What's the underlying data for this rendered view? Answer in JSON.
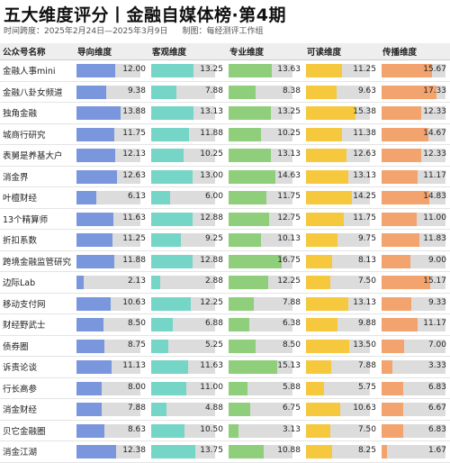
{
  "title": "五大维度评分丨金融自媒体榜·第4期",
  "subtitle": {
    "span": "时间跨度：2025年2月24日—2025年3月9日",
    "maker": "制图：每经测评工作组"
  },
  "colors": {
    "导向维度": "#7a97dd",
    "客观维度": "#75d5c6",
    "专业维度": "#8fce7b",
    "可读维度": "#f5c83e",
    "传播维度": "#f2a36e",
    "track": "#dcdcdc"
  },
  "headers": [
    "公众号名称",
    "导向维度",
    "客观维度",
    "专业维度",
    "可读维度",
    "传播维度"
  ],
  "score_max": 20,
  "rows": [
    {
      "name": "金融人事mini",
      "scores": [
        "12.00",
        "13.25",
        "13.63",
        "11.25",
        "15.67"
      ]
    },
    {
      "name": "金融八卦女频道",
      "scores": [
        "9.38",
        "7.88",
        "8.38",
        "9.63",
        "17.33"
      ]
    },
    {
      "name": "独角金融",
      "scores": [
        "13.88",
        "13.13",
        "13.25",
        "15.38",
        "12.33"
      ]
    },
    {
      "name": "城商行研究",
      "scores": [
        "11.75",
        "11.88",
        "10.25",
        "11.38",
        "14.67"
      ]
    },
    {
      "name": "表舅是养基大户",
      "scores": [
        "12.13",
        "10.25",
        "13.13",
        "12.63",
        "12.33"
      ]
    },
    {
      "name": "消金界",
      "scores": [
        "12.63",
        "13.00",
        "14.63",
        "13.13",
        "11.17"
      ]
    },
    {
      "name": "叶檀财经",
      "scores": [
        "6.13",
        "6.00",
        "11.75",
        "14.25",
        "14.83"
      ]
    },
    {
      "name": "13个精算师",
      "scores": [
        "11.63",
        "12.88",
        "12.75",
        "11.75",
        "11.00"
      ]
    },
    {
      "name": "折扣系数",
      "scores": [
        "11.25",
        "9.25",
        "10.13",
        "9.75",
        "11.83"
      ]
    },
    {
      "name": "跨境金融监管研究",
      "scores": [
        "11.88",
        "12.88",
        "16.75",
        "8.13",
        "9.00"
      ]
    },
    {
      "name": "边际Lab",
      "scores": [
        "2.13",
        "2.88",
        "12.25",
        "7.50",
        "15.17"
      ]
    },
    {
      "name": "移动支付网",
      "scores": [
        "10.63",
        "12.25",
        "7.88",
        "13.13",
        "9.33"
      ]
    },
    {
      "name": "财经野武士",
      "scores": [
        "8.50",
        "6.88",
        "6.38",
        "9.88",
        "11.17"
      ]
    },
    {
      "name": "债券圈",
      "scores": [
        "8.75",
        "5.25",
        "8.50",
        "13.50",
        "7.00"
      ]
    },
    {
      "name": "诉责论谈",
      "scores": [
        "11.13",
        "11.63",
        "15.13",
        "7.88",
        "3.33"
      ]
    },
    {
      "name": "行长高参",
      "scores": [
        "8.00",
        "11.00",
        "5.88",
        "5.75",
        "6.83"
      ]
    },
    {
      "name": "消金财经",
      "scores": [
        "7.88",
        "4.88",
        "6.75",
        "10.63",
        "6.67"
      ]
    },
    {
      "name": "贝它金融圈",
      "scores": [
        "8.63",
        "10.50",
        "3.13",
        "7.50",
        "6.83"
      ]
    },
    {
      "name": "消金江湖",
      "scores": [
        "12.38",
        "13.75",
        "10.88",
        "8.25",
        "1.67"
      ]
    }
  ]
}
